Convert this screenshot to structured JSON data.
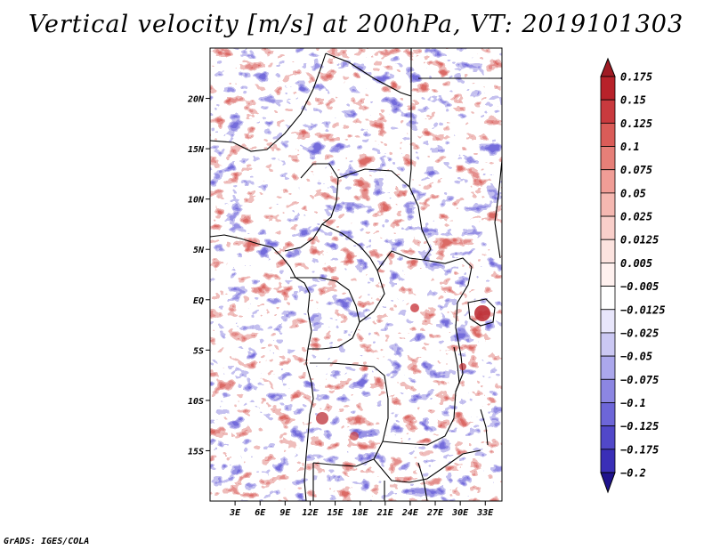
{
  "title": "Vertical velocity [m/s] at 200hPa, VT: 2019101303",
  "credit": "GrADS: IGES/COLA",
  "chart_data": {
    "type": "heatmap",
    "title": "Vertical velocity [m/s] at 200hPa, VT: 2019101303",
    "variable": "Vertical velocity",
    "units": "m/s",
    "level": "200hPa",
    "valid_time": "2019101303",
    "lon_range": [
      0,
      35
    ],
    "lat_range": [
      -20,
      25
    ],
    "x_ticks": [
      {
        "value": 3,
        "label": "3E"
      },
      {
        "value": 6,
        "label": "6E"
      },
      {
        "value": 9,
        "label": "9E"
      },
      {
        "value": 12,
        "label": "12E"
      },
      {
        "value": 15,
        "label": "15E"
      },
      {
        "value": 18,
        "label": "18E"
      },
      {
        "value": 21,
        "label": "21E"
      },
      {
        "value": 24,
        "label": "24E"
      },
      {
        "value": 27,
        "label": "27E"
      },
      {
        "value": 30,
        "label": "30E"
      },
      {
        "value": 33,
        "label": "33E"
      }
    ],
    "y_ticks": [
      {
        "value": 20,
        "label": "20N"
      },
      {
        "value": 15,
        "label": "15N"
      },
      {
        "value": 10,
        "label": "10N"
      },
      {
        "value": 5,
        "label": "5N"
      },
      {
        "value": 0,
        "label": "EQ"
      },
      {
        "value": -5,
        "label": "5S"
      },
      {
        "value": -10,
        "label": "10S"
      },
      {
        "value": -15,
        "label": "15S"
      }
    ],
    "colorbar": {
      "levels": [
        {
          "label": "0.175",
          "color": "#b8222a"
        },
        {
          "label": "0.15",
          "color": "#c93a3e"
        },
        {
          "label": "0.125",
          "color": "#da5c58"
        },
        {
          "label": "0.1",
          "color": "#e67f78"
        },
        {
          "label": "0.075",
          "color": "#f09d96"
        },
        {
          "label": "0.05",
          "color": "#f5b8b1"
        },
        {
          "label": "0.025",
          "color": "#f9cfca"
        },
        {
          "label": "0.0125",
          "color": "#fce3df"
        },
        {
          "label": "0.005",
          "color": "#fff1ef"
        },
        {
          "label": "−0.005",
          "color": "#ffffff"
        },
        {
          "label": "−0.0125",
          "color": "#e8e6fb"
        },
        {
          "label": "−0.025",
          "color": "#cbc8f3"
        },
        {
          "label": "−0.05",
          "color": "#aba7ec"
        },
        {
          "label": "−0.075",
          "color": "#8c86e2"
        },
        {
          "label": "−0.1",
          "color": "#6d66d8"
        },
        {
          "label": "−0.125",
          "color": "#5148c9"
        },
        {
          "label": "−0.175",
          "color": "#3a2fb7"
        },
        {
          "label": "−0.2",
          "color": "#2a1ea2"
        }
      ],
      "above_color": "#a01b24",
      "below_color": "#1f138d"
    }
  }
}
